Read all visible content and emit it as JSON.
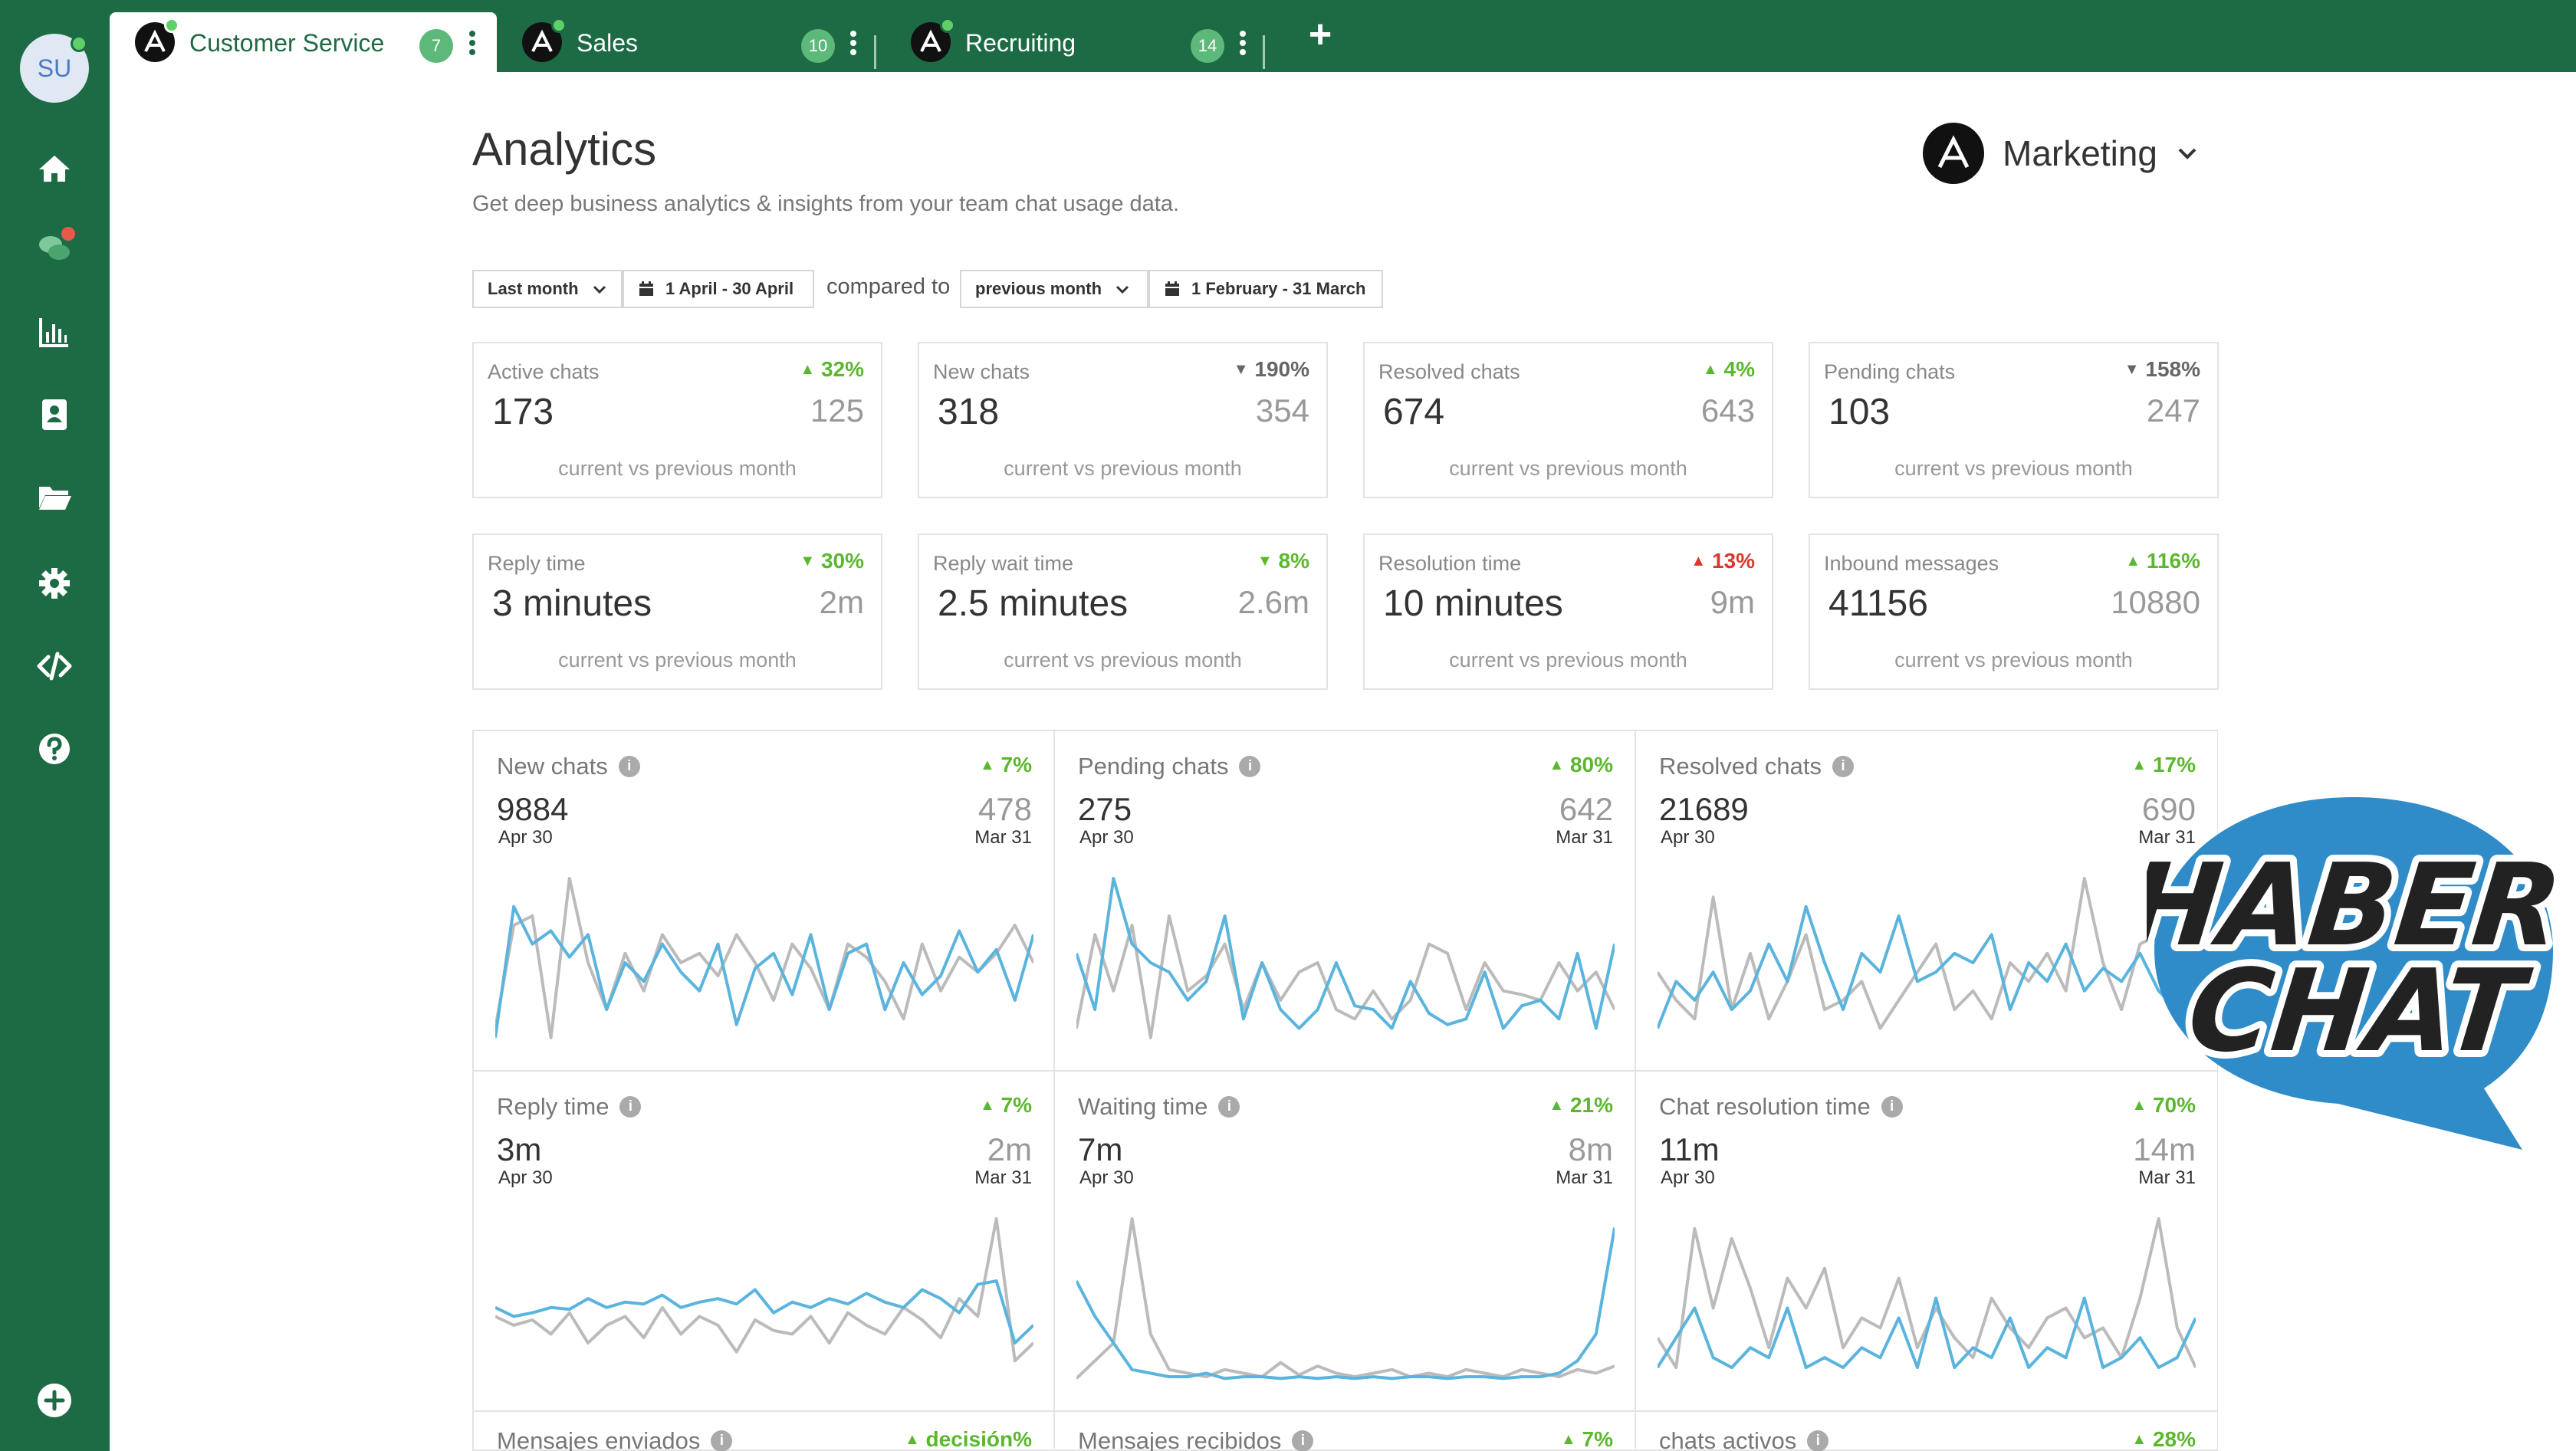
{
  "user": {
    "initials": "SU"
  },
  "sidebar": {
    "items": [
      {
        "name": "home-icon"
      },
      {
        "name": "chats-icon"
      },
      {
        "name": "analytics-icon"
      },
      {
        "name": "contacts-icon"
      },
      {
        "name": "folder-icon"
      },
      {
        "name": "settings-icon"
      },
      {
        "name": "code-icon"
      },
      {
        "name": "help-icon"
      },
      {
        "name": "add-icon"
      }
    ]
  },
  "tabs": [
    {
      "label": "Customer Service",
      "badge": "7"
    },
    {
      "label": "Sales",
      "badge": "10"
    },
    {
      "label": "Recruiting",
      "badge": "14"
    }
  ],
  "add_tab_label": "+",
  "header": {
    "title": "Analytics",
    "subtitle": "Get deep business analytics & insights from your team chat usage data.",
    "team": "Marketing"
  },
  "filters": {
    "period": "Last month",
    "range": "1 April - 30 April",
    "compared_to": "compared to",
    "compare_period": "previous month",
    "compare_range": "1 February - 31 March"
  },
  "stats": [
    {
      "label": "Active chats",
      "change": "32%",
      "dir": "up",
      "current": "173",
      "previous": "125",
      "caption": "current vs previous month"
    },
    {
      "label": "New chats",
      "change": "190%",
      "dir": "down",
      "current": "318",
      "previous": "354",
      "caption": "current vs previous month"
    },
    {
      "label": "Resolved chats",
      "change": "4%",
      "dir": "up",
      "current": "674",
      "previous": "643",
      "caption": "current vs previous month"
    },
    {
      "label": "Pending chats",
      "change": "158%",
      "dir": "down",
      "current": "103",
      "previous": "247",
      "caption": "current vs previous month"
    },
    {
      "label": "Reply time",
      "change": "30%",
      "dir": "down-good",
      "current": "3 minutes",
      "previous": "2m",
      "caption": "current vs previous month"
    },
    {
      "label": "Reply wait time",
      "change": "8%",
      "dir": "down-good",
      "current": "2.5 minutes",
      "previous": "2.6m",
      "caption": "current vs previous month"
    },
    {
      "label": "Resolution time",
      "change": "13%",
      "dir": "up-bad",
      "current": "10 minutes",
      "previous": "9m",
      "caption": "current vs previous month"
    },
    {
      "label": "Inbound messages",
      "change": "116%",
      "dir": "up",
      "current": "41156",
      "previous": "10880",
      "caption": "current vs previous month"
    }
  ],
  "chart_data": [
    {
      "type": "line",
      "title": "New chats",
      "change": "7%",
      "current": "9884",
      "current_date": "Apr 30",
      "previous": "478",
      "previous_date": "Mar 31",
      "series": [
        {
          "color": "#5ab4dd",
          "values": [
            5,
            75,
            55,
            62,
            48,
            60,
            20,
            45,
            35,
            55,
            40,
            30,
            55,
            12,
            42,
            50,
            28,
            60,
            20,
            50,
            55,
            20,
            45,
            28,
            38,
            62,
            40,
            52,
            25,
            60
          ]
        },
        {
          "color": "#bbbbbb",
          "values": [
            10,
            65,
            70,
            5,
            90,
            45,
            20,
            50,
            30,
            60,
            45,
            50,
            38,
            60,
            45,
            25,
            55,
            42,
            20,
            55,
            48,
            35,
            15,
            55,
            30,
            48,
            40,
            50,
            65,
            45
          ]
        }
      ]
    },
    {
      "type": "line",
      "title": "Pending chats",
      "change": "80%",
      "current": "275",
      "current_date": "Apr 30",
      "previous": "642",
      "previous_date": "Mar 31",
      "series": [
        {
          "color": "#5ab4dd",
          "values": [
            50,
            20,
            90,
            55,
            45,
            40,
            25,
            35,
            70,
            15,
            45,
            20,
            10,
            20,
            45,
            22,
            20,
            10,
            35,
            18,
            12,
            15,
            40,
            10,
            22,
            25,
            15,
            50,
            10,
            55
          ]
        },
        {
          "color": "#bbbbbb",
          "values": [
            10,
            60,
            30,
            65,
            5,
            70,
            30,
            38,
            55,
            20,
            45,
            25,
            40,
            45,
            20,
            15,
            30,
            15,
            25,
            55,
            50,
            20,
            45,
            30,
            28,
            25,
            45,
            30,
            40,
            20
          ]
        }
      ]
    },
    {
      "type": "line",
      "title": "Resolved chats",
      "change": "17%",
      "current": "21689",
      "current_date": "Apr 30",
      "previous": "690",
      "previous_date": "Mar 31",
      "series": [
        {
          "color": "#5ab4dd",
          "values": [
            10,
            35,
            25,
            40,
            20,
            30,
            55,
            35,
            75,
            45,
            20,
            50,
            40,
            70,
            35,
            40,
            50,
            45,
            60,
            20,
            45,
            35,
            55,
            30,
            42,
            35,
            50,
            30,
            20,
            10
          ]
        },
        {
          "color": "#bbbbbb",
          "values": [
            40,
            25,
            15,
            80,
            20,
            50,
            15,
            35,
            60,
            20,
            25,
            35,
            10,
            25,
            40,
            55,
            20,
            30,
            15,
            45,
            35,
            50,
            30,
            90,
            45,
            20,
            55,
            60,
            40,
            65
          ]
        }
      ]
    },
    {
      "type": "line",
      "title": "Reply time",
      "change": "7%",
      "current": "3m",
      "current_date": "Apr 30",
      "previous": "2m",
      "previous_date": "Mar 31",
      "series": [
        {
          "color": "#5ab4dd",
          "values": [
            45,
            40,
            42,
            45,
            44,
            50,
            45,
            48,
            47,
            52,
            45,
            48,
            50,
            47,
            55,
            42,
            48,
            45,
            50,
            47,
            53,
            48,
            45,
            55,
            50,
            42,
            58,
            60,
            25,
            35
          ]
        },
        {
          "color": "#bbbbbb",
          "values": [
            40,
            35,
            38,
            30,
            42,
            25,
            35,
            40,
            28,
            45,
            30,
            40,
            35,
            20,
            38,
            32,
            30,
            40,
            25,
            42,
            35,
            30,
            45,
            38,
            28,
            50,
            40,
            95,
            15,
            25
          ]
        }
      ]
    },
    {
      "type": "line",
      "title": "Waiting time",
      "change": "21%",
      "current": "7m",
      "current_date": "Apr 30",
      "previous": "8m",
      "previous_date": "Mar 31",
      "series": [
        {
          "color": "#5ab4dd",
          "values": [
            60,
            40,
            25,
            10,
            8,
            6,
            6,
            8,
            5,
            6,
            6,
            5,
            6,
            5,
            6,
            5,
            6,
            5,
            6,
            6,
            5,
            6,
            6,
            5,
            6,
            6,
            8,
            15,
            30,
            90
          ]
        },
        {
          "color": "#bbbbbb",
          "values": [
            5,
            15,
            25,
            95,
            30,
            10,
            8,
            6,
            10,
            8,
            6,
            14,
            7,
            12,
            8,
            6,
            8,
            10,
            6,
            8,
            6,
            10,
            8,
            6,
            10,
            8,
            6,
            10,
            8,
            12
          ]
        }
      ]
    },
    {
      "type": "line",
      "title": "Chat resolution time",
      "change": "70%",
      "current": "11m",
      "current_date": "Apr 30",
      "previous": "14m",
      "previous_date": "Mar 31",
      "series": [
        {
          "color": "#5ab4dd",
          "values": [
            10,
            25,
            40,
            15,
            10,
            20,
            15,
            40,
            10,
            15,
            10,
            20,
            15,
            35,
            10,
            45,
            10,
            20,
            15,
            35,
            10,
            20,
            15,
            45,
            10,
            15,
            25,
            10,
            15,
            35
          ]
        },
        {
          "color": "#bbbbbb",
          "values": [
            25,
            10,
            80,
            40,
            75,
            50,
            20,
            55,
            40,
            60,
            20,
            35,
            30,
            55,
            20,
            40,
            25,
            15,
            45,
            30,
            20,
            35,
            40,
            25,
            30,
            15,
            45,
            85,
            30,
            10
          ]
        }
      ]
    }
  ],
  "clipped_panels": [
    {
      "title": "Mensajes enviados",
      "change": "decisión%"
    },
    {
      "title": "Mensajes recibidos",
      "change": "7%"
    },
    {
      "title": "chats activos",
      "change": "28%"
    }
  ],
  "watermark": {
    "line1": "HABER",
    "line2": "CHAT",
    "colors": {
      "bubble": "#2f8cc8",
      "text": "#222222"
    }
  },
  "colors": {
    "brand": "#1d6b44",
    "accent_green": "#5bb82e",
    "alert_red": "#d9382b",
    "current_series": "#5ab4dd",
    "previous_series": "#bbbbbb"
  }
}
